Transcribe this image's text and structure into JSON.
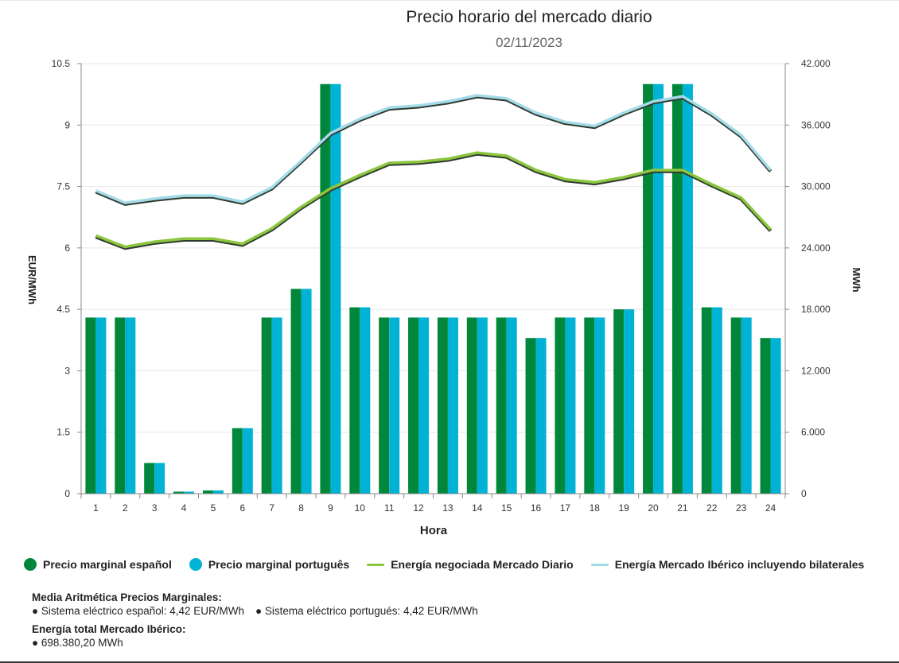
{
  "chart_data": {
    "type": "bar+line",
    "title": "Precio horario del mercado diario",
    "subtitle": "02/11/2023",
    "xlabel": "Hora",
    "ylabel_left": "EUR/MWh",
    "ylabel_right": "MWh",
    "categories": [
      "1",
      "2",
      "3",
      "4",
      "5",
      "6",
      "7",
      "8",
      "9",
      "10",
      "11",
      "12",
      "13",
      "14",
      "15",
      "16",
      "17",
      "18",
      "19",
      "20",
      "21",
      "22",
      "23",
      "24"
    ],
    "ylim_left": [
      0,
      10.5
    ],
    "yticks_left": [
      "0",
      "1.5",
      "3",
      "4.5",
      "6",
      "7.5",
      "9",
      "10.5"
    ],
    "ylim_right": [
      0,
      42000
    ],
    "yticks_right": [
      "0",
      "6.000",
      "12.000",
      "18.000",
      "24.000",
      "30.000",
      "36.000",
      "42.000"
    ],
    "bar_series": [
      {
        "name": "Precio marginal español",
        "color": "#00873c",
        "values": [
          4.3,
          4.3,
          0.75,
          0.05,
          0.08,
          1.6,
          4.3,
          5.0,
          10.0,
          4.55,
          4.3,
          4.3,
          4.3,
          4.3,
          4.3,
          3.8,
          4.3,
          4.3,
          4.5,
          10.0,
          10.0,
          4.55,
          4.3,
          3.8
        ]
      },
      {
        "name": "Precio marginal português",
        "color": "#00b2d4",
        "values": [
          4.3,
          4.3,
          0.75,
          0.05,
          0.08,
          1.6,
          4.3,
          5.0,
          10.0,
          4.55,
          4.3,
          4.3,
          4.3,
          4.3,
          4.3,
          3.8,
          4.3,
          4.3,
          4.5,
          10.0,
          10.0,
          4.55,
          4.3,
          3.8
        ]
      }
    ],
    "line_series": [
      {
        "name": "Energía negociada Mercado Diario",
        "color": "#8cc63f",
        "values": [
          25200,
          24100,
          24600,
          24900,
          24900,
          24400,
          25900,
          28000,
          29800,
          31100,
          32300,
          32400,
          32700,
          33300,
          33000,
          31600,
          30700,
          30400,
          30900,
          31600,
          31600,
          30200,
          28900,
          25800
        ]
      },
      {
        "name": "Energía Mercado Ibérico incluyendo bilaterales",
        "color": "#a4dbe8",
        "values": [
          29600,
          28400,
          28800,
          29100,
          29100,
          28500,
          29900,
          32500,
          35200,
          36600,
          37700,
          37900,
          38300,
          38900,
          38600,
          37200,
          36300,
          35900,
          37200,
          38300,
          38800,
          37100,
          35000,
          31600
        ]
      }
    ]
  },
  "legend": {
    "es_price": "Precio marginal español",
    "pt_price": "Precio marginal português",
    "energy_daily": "Energía negociada Mercado Diario",
    "energy_iberian": "Energía Mercado Ibérico incluyendo bilaterales"
  },
  "summary": {
    "avg_heading": "Media Aritmética Precios Marginales:",
    "es_avg": "● Sistema eléctrico español: 4,42 EUR/MWh",
    "pt_avg": "● Sistema eléctrico portugués: 4,42 EUR/MWh",
    "energy_heading": "Energía total Mercado Ibérico:",
    "energy_total": "● 698.380,20 MWh"
  },
  "colors": {
    "es": "#00873c",
    "pt": "#00b2d4",
    "line_daily": "#8cc63f",
    "line_iberian": "#a4dbe8"
  }
}
